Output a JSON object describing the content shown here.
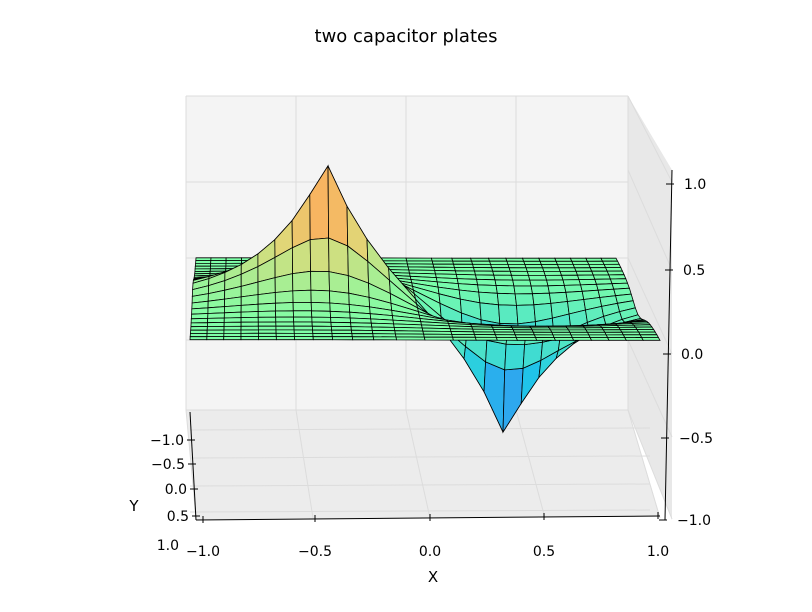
{
  "chart_data": {
    "type": "surface3d",
    "title": "two capacitor plates",
    "xlabel": "X",
    "ylabel": "Y",
    "zlabel": "",
    "xlim": [
      -1.0,
      1.0
    ],
    "ylim": [
      -1.0,
      1.0
    ],
    "zlim": [
      -1.0,
      1.0
    ],
    "x_ticks": [
      "−1.0",
      "−0.5",
      "0.0",
      "0.5",
      "1.0"
    ],
    "y_ticks": [
      "−1.0",
      "−0.5",
      "0.0",
      "0.5",
      "1.0"
    ],
    "z_ticks": [
      "−1.0",
      "−0.5",
      "0.0",
      "0.5",
      "1.0"
    ],
    "grid": true,
    "colormap": "rainbow",
    "surface": {
      "positive_peak": {
        "x": -0.4,
        "y": 0.0,
        "z": 1.0
      },
      "negative_peak": {
        "x": 0.4,
        "y": 0.0,
        "z": -1.0
      },
      "baseline_z": 0.0
    },
    "colors": {
      "peak_high": "#ff2a1a",
      "mid_high": "#e0d878",
      "baseline": "#7dffa8",
      "mid_low": "#1ec8e8",
      "peak_low": "#5a4bff",
      "pane": "#f4f4f4",
      "grid": "#dcdcdc",
      "edge": "#000000"
    }
  }
}
